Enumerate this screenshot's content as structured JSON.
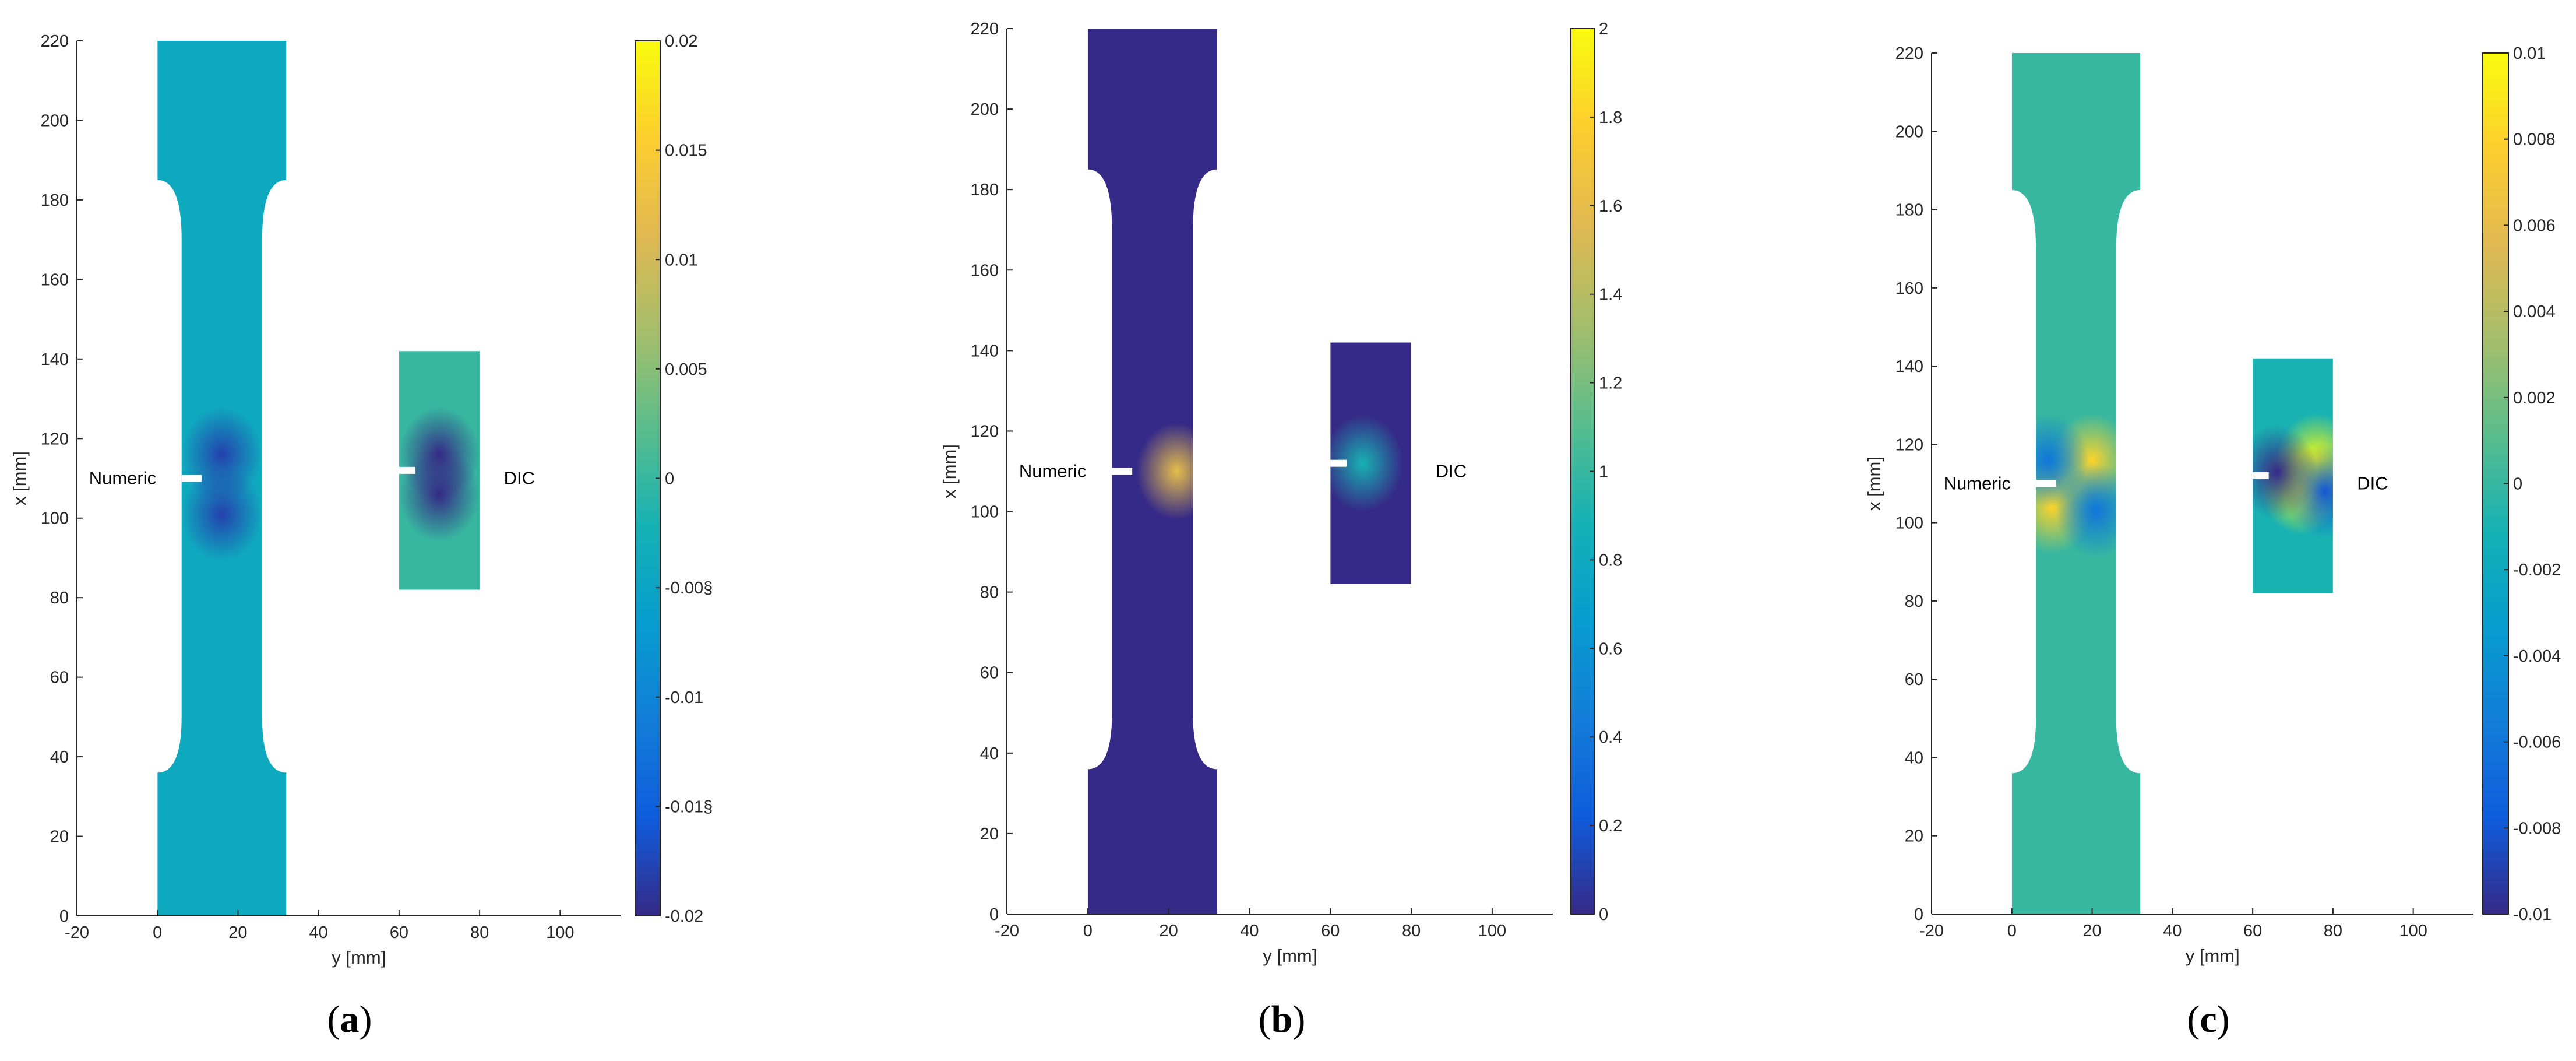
{
  "chart_data": [
    {
      "type": "heatmap",
      "panel_label": "a",
      "xlabel": "y [mm]",
      "ylabel": "x [mm]",
      "xlim": [
        -20,
        115
      ],
      "ylim": [
        0,
        220
      ],
      "x_ticks": [
        -20,
        0,
        20,
        40,
        60,
        80,
        100
      ],
      "y_ticks": [
        0,
        20,
        40,
        60,
        80,
        100,
        120,
        140,
        160,
        180,
        200,
        220
      ],
      "annotations": [
        "Numeric",
        "DIC"
      ],
      "colorbar": {
        "min": -0.02,
        "max": 0.02,
        "ticks": [
          -0.02,
          -0.015,
          -0.01,
          -0.005,
          0,
          0.005,
          0.01,
          0.015,
          0.02
        ],
        "tick_labels": [
          "-0.02",
          "-0.01§",
          "-0.01",
          "-0.00§",
          "0",
          "0.005",
          "0.01",
          "0.015",
          "0.02"
        ]
      },
      "field": {
        "background": -0.004,
        "dic_background": 0.0,
        "lobes": [
          {
            "y": 16,
            "x": 116,
            "v": -0.018
          },
          {
            "y": 16,
            "x": 101,
            "v": -0.018
          },
          {
            "y": 70,
            "x": 116,
            "v": -0.02
          },
          {
            "y": 70,
            "x": 106,
            "v": -0.02
          }
        ]
      }
    },
    {
      "type": "heatmap",
      "panel_label": "b",
      "xlabel": "y [mm]",
      "ylabel": "x [mm]",
      "xlim": [
        -20,
        115
      ],
      "ylim": [
        0,
        220
      ],
      "x_ticks": [
        -20,
        0,
        20,
        40,
        60,
        80,
        100
      ],
      "y_ticks": [
        0,
        20,
        40,
        60,
        80,
        100,
        120,
        140,
        160,
        180,
        200,
        220
      ],
      "annotations": [
        "Numeric",
        "DIC"
      ],
      "colorbar": {
        "min": 0,
        "max": 2,
        "ticks": [
          0,
          0.2,
          0.4,
          0.6,
          0.8,
          1,
          1.2,
          1.4,
          1.6,
          1.8,
          2
        ],
        "tick_labels": [
          "0",
          "0.2",
          "0.4",
          "0.6",
          "0.8",
          "1",
          "1.2",
          "1.4",
          "1.6",
          "1.8",
          "2"
        ]
      },
      "field": {
        "background": 0.0,
        "dic_background": 0.0,
        "lobes": [
          {
            "y": 22,
            "x": 110,
            "v": 1.6
          },
          {
            "y": 68,
            "x": 112,
            "v": 0.9
          }
        ]
      }
    },
    {
      "type": "heatmap",
      "panel_label": "c",
      "xlabel": "y [mm]",
      "ylabel": "x [mm]",
      "xlim": [
        -20,
        115
      ],
      "ylim": [
        0,
        220
      ],
      "x_ticks": [
        -20,
        0,
        20,
        40,
        60,
        80,
        100
      ],
      "y_ticks": [
        0,
        20,
        40,
        60,
        80,
        100,
        120,
        140,
        160,
        180,
        200,
        220
      ],
      "annotations": [
        "Numeric",
        "DIC"
      ],
      "colorbar": {
        "min": -0.01,
        "max": 0.01,
        "ticks": [
          -0.01,
          -0.008,
          -0.006,
          -0.004,
          -0.002,
          0,
          0.002,
          0.004,
          0.006,
          0.008,
          0.01
        ],
        "tick_labels": [
          "-0.01",
          "-0.008",
          "-0.006",
          "-0.004",
          "-0.002",
          "0",
          "0.002",
          "0.004",
          "0.006",
          "0.008",
          "0.01"
        ]
      },
      "field": {
        "background": 0.0,
        "dic_background": -0.001,
        "lobes": [
          {
            "y": 20,
            "x": 116,
            "v": 0.008
          },
          {
            "y": 10,
            "x": 104,
            "v": 0.008
          },
          {
            "y": 9,
            "x": 116,
            "v": -0.006
          },
          {
            "y": 21,
            "x": 103,
            "v": -0.006
          },
          {
            "y": 72,
            "x": 109,
            "v": 0.01
          },
          {
            "y": 76,
            "x": 116,
            "v": 0.01
          },
          {
            "y": 66,
            "x": 113,
            "v": -0.01
          },
          {
            "y": 78,
            "x": 108,
            "v": -0.008
          }
        ]
      }
    }
  ]
}
